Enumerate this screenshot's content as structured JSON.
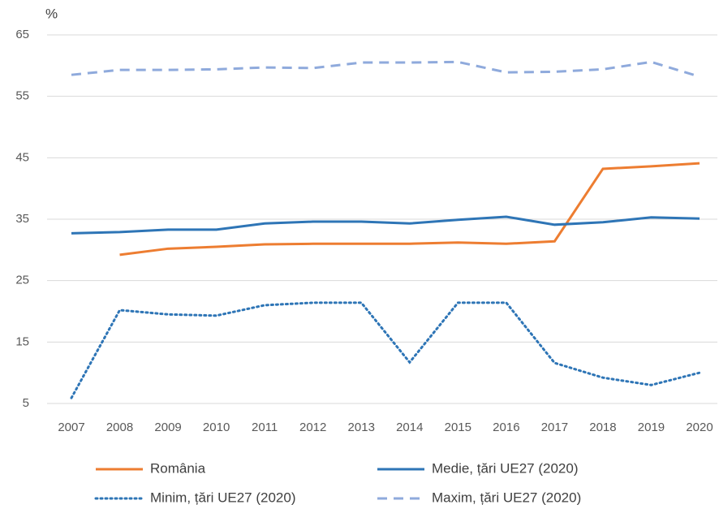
{
  "chart_data": {
    "type": "line",
    "y_label": "%",
    "categories": [
      "2007",
      "2008",
      "2009",
      "2010",
      "2011",
      "2012",
      "2013",
      "2014",
      "2015",
      "2016",
      "2017",
      "2018",
      "2019",
      "2020"
    ],
    "series": [
      {
        "name": "România",
        "color": "#ED7D31",
        "dash": "solid",
        "values": [
          null,
          29.2,
          30.2,
          30.5,
          30.9,
          31.0,
          31.0,
          31.0,
          31.2,
          31.0,
          31.4,
          43.2,
          43.6,
          44.1
        ]
      },
      {
        "name": "Medie, țări UE27 (2020)",
        "color": "#2E75B6",
        "dash": "solid",
        "values": [
          32.7,
          32.9,
          33.3,
          33.3,
          34.3,
          34.6,
          34.6,
          34.3,
          34.9,
          35.4,
          34.1,
          34.5,
          35.3,
          35.1
        ]
      },
      {
        "name": "Minim,  țări UE27 (2020)",
        "color": "#2E75B6",
        "dash": "dotted",
        "values": [
          5.9,
          20.2,
          19.5,
          19.3,
          21.0,
          21.4,
          21.4,
          11.7,
          21.4,
          21.4,
          11.6,
          9.2,
          8.0,
          10.0
        ]
      },
      {
        "name": "Maxim, țări UE27 (2020)",
        "color": "#8FAADC",
        "dash": "dashed",
        "values": [
          58.5,
          59.3,
          59.3,
          59.4,
          59.7,
          59.6,
          60.5,
          60.5,
          60.6,
          58.9,
          59.0,
          59.4,
          60.6,
          58.2
        ]
      }
    ],
    "ylim": [
      5,
      65
    ],
    "yticks": [
      5,
      15,
      25,
      35,
      45,
      55,
      65
    ],
    "grid": true,
    "legend": "bottom"
  }
}
